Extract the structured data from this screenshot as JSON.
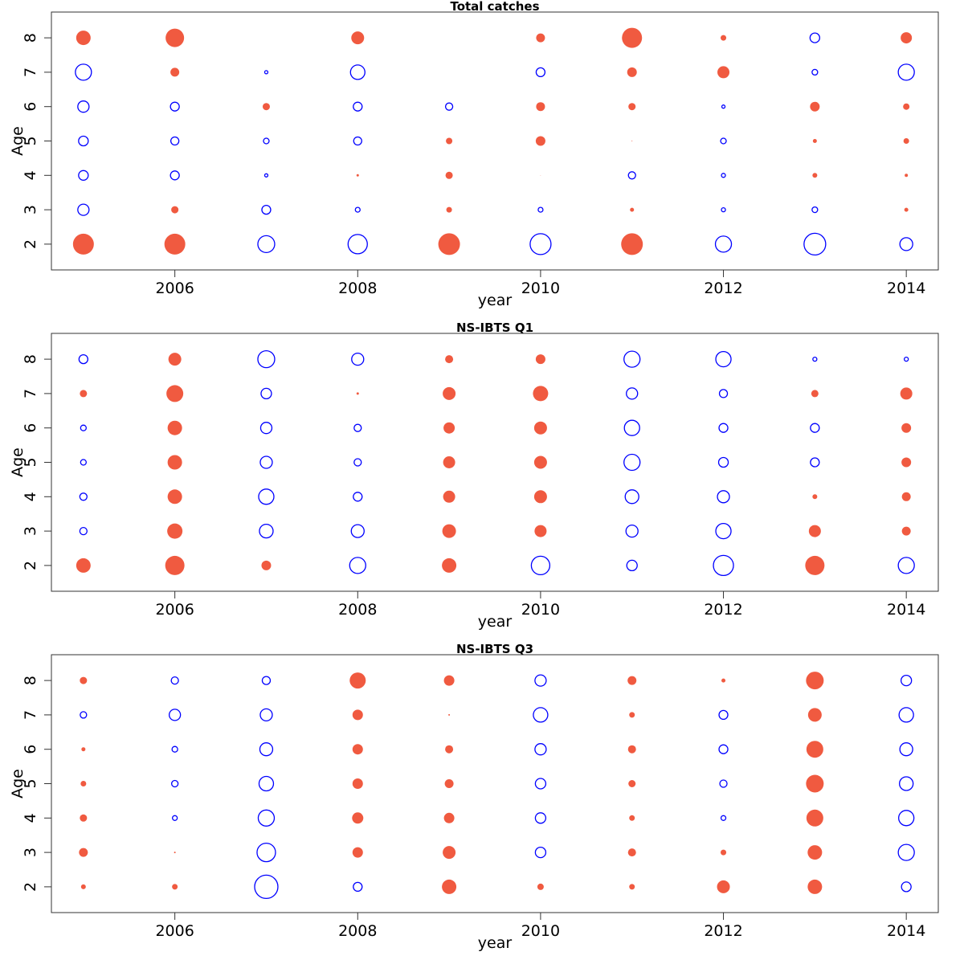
{
  "chart_data": [
    {
      "type": "scatter",
      "title": "Total catches",
      "xlabel": "year",
      "ylabel": "Age",
      "years": [
        2005,
        2006,
        2007,
        2008,
        2009,
        2010,
        2011,
        2012,
        2013,
        2014
      ],
      "x_ticks": [
        2006,
        2008,
        2010,
        2012,
        2014
      ],
      "ages": [
        2,
        3,
        4,
        5,
        6,
        7,
        8
      ],
      "colors": {
        "positive": "#f05a40",
        "negative": "#0000ff"
      },
      "rows": [
        {
          "age": 8,
          "values": [
            9,
            11.5,
            0,
            8,
            0,
            5.5,
            12.5,
            3.5,
            -6,
            7
          ]
        },
        {
          "age": 7,
          "values": [
            -10,
            5.5,
            -2,
            -9,
            0,
            -5.5,
            6,
            7.5,
            -3.5,
            -10
          ]
        },
        {
          "age": 6,
          "values": [
            -7,
            -5.5,
            4.5,
            -5.5,
            -4.5,
            5.5,
            4.5,
            -2,
            6,
            4
          ]
        },
        {
          "age": 5,
          "values": [
            -6,
            -5,
            -3.5,
            -5,
            4,
            6,
            0.5,
            -3.5,
            2.5,
            3.5
          ]
        },
        {
          "age": 4,
          "values": [
            -6,
            -5.5,
            -2,
            1.5,
            4.5,
            0.3,
            -4.5,
            -2.5,
            3,
            2
          ]
        },
        {
          "age": 3,
          "values": [
            -7,
            4.5,
            -5.5,
            -3,
            3.5,
            -3,
            2.5,
            -2.5,
            -3.5,
            2.5
          ]
        },
        {
          "age": 2,
          "values": [
            13,
            13,
            -10.5,
            -12,
            13.5,
            -13,
            13.5,
            -10,
            -13.5,
            -8
          ]
        }
      ]
    },
    {
      "type": "scatter",
      "title": "NS-IBTS Q1",
      "xlabel": "year",
      "ylabel": "Age",
      "years": [
        2005,
        2006,
        2007,
        2008,
        2009,
        2010,
        2011,
        2012,
        2013,
        2014
      ],
      "x_ticks": [
        2006,
        2008,
        2010,
        2012,
        2014
      ],
      "ages": [
        2,
        3,
        4,
        5,
        6,
        7,
        8
      ],
      "colors": {
        "positive": "#f05a40",
        "negative": "#0000ff"
      },
      "rows": [
        {
          "age": 8,
          "values": [
            -5.5,
            8,
            -10.5,
            -7.5,
            5,
            6,
            -10,
            -9.5,
            -2.5,
            -2.5
          ]
        },
        {
          "age": 7,
          "values": [
            4.5,
            10.5,
            -6.5,
            1.5,
            8,
            9.5,
            -7,
            -5,
            4.5,
            7.5
          ]
        },
        {
          "age": 6,
          "values": [
            -3.5,
            9,
            -7,
            -4.5,
            7,
            8,
            -9.5,
            -5.5,
            -5.5,
            6
          ]
        },
        {
          "age": 5,
          "values": [
            -3.5,
            9,
            -7.5,
            -4.5,
            7.5,
            8,
            -10,
            -6,
            -5.5,
            6
          ]
        },
        {
          "age": 4,
          "values": [
            -4.5,
            9,
            -9.5,
            -5.5,
            7.5,
            8,
            -8.5,
            -7.5,
            3,
            5.5
          ]
        },
        {
          "age": 3,
          "values": [
            -4.5,
            9.5,
            -8.5,
            -8,
            8.5,
            7.5,
            -7.5,
            -9.5,
            7.5,
            5.5
          ]
        },
        {
          "age": 2,
          "values": [
            9,
            12,
            6,
            -10,
            9,
            -11.5,
            -6.5,
            -12.5,
            12,
            -10
          ]
        }
      ]
    },
    {
      "type": "scatter",
      "title": "NS-IBTS Q3",
      "xlabel": "year",
      "ylabel": "Age",
      "years": [
        2005,
        2006,
        2007,
        2008,
        2009,
        2010,
        2011,
        2012,
        2013,
        2014
      ],
      "x_ticks": [
        2006,
        2008,
        2010,
        2012,
        2014
      ],
      "ages": [
        2,
        3,
        4,
        5,
        6,
        7,
        8
      ],
      "colors": {
        "positive": "#f05a40",
        "negative": "#0000ff"
      },
      "rows": [
        {
          "age": 8,
          "values": [
            4.5,
            -4.5,
            -5,
            10,
            6.5,
            -7,
            5.5,
            2.5,
            11,
            -6.5
          ]
        },
        {
          "age": 7,
          "values": [
            -4,
            -7,
            -7.5,
            6.5,
            1,
            -9,
            3.5,
            -5.5,
            8.5,
            -9
          ]
        },
        {
          "age": 6,
          "values": [
            2.5,
            -3.5,
            -8,
            6.5,
            5,
            -7,
            5,
            -5.5,
            10.5,
            -8
          ]
        },
        {
          "age": 5,
          "values": [
            3.5,
            -4,
            -9,
            6.5,
            5.5,
            -6.5,
            4.5,
            -4.5,
            11,
            -8.5
          ]
        },
        {
          "age": 4,
          "values": [
            4.5,
            -3,
            -10,
            7,
            6.5,
            -6.5,
            3.5,
            -3,
            10.5,
            -9.5
          ]
        },
        {
          "age": 3,
          "values": [
            5.5,
            1,
            -11.5,
            6.5,
            8,
            -6.5,
            5,
            3.5,
            9,
            -10
          ]
        },
        {
          "age": 2,
          "values": [
            3,
            3.5,
            -14.5,
            -5.5,
            9,
            4,
            3.5,
            8,
            9,
            -6
          ]
        }
      ]
    }
  ]
}
